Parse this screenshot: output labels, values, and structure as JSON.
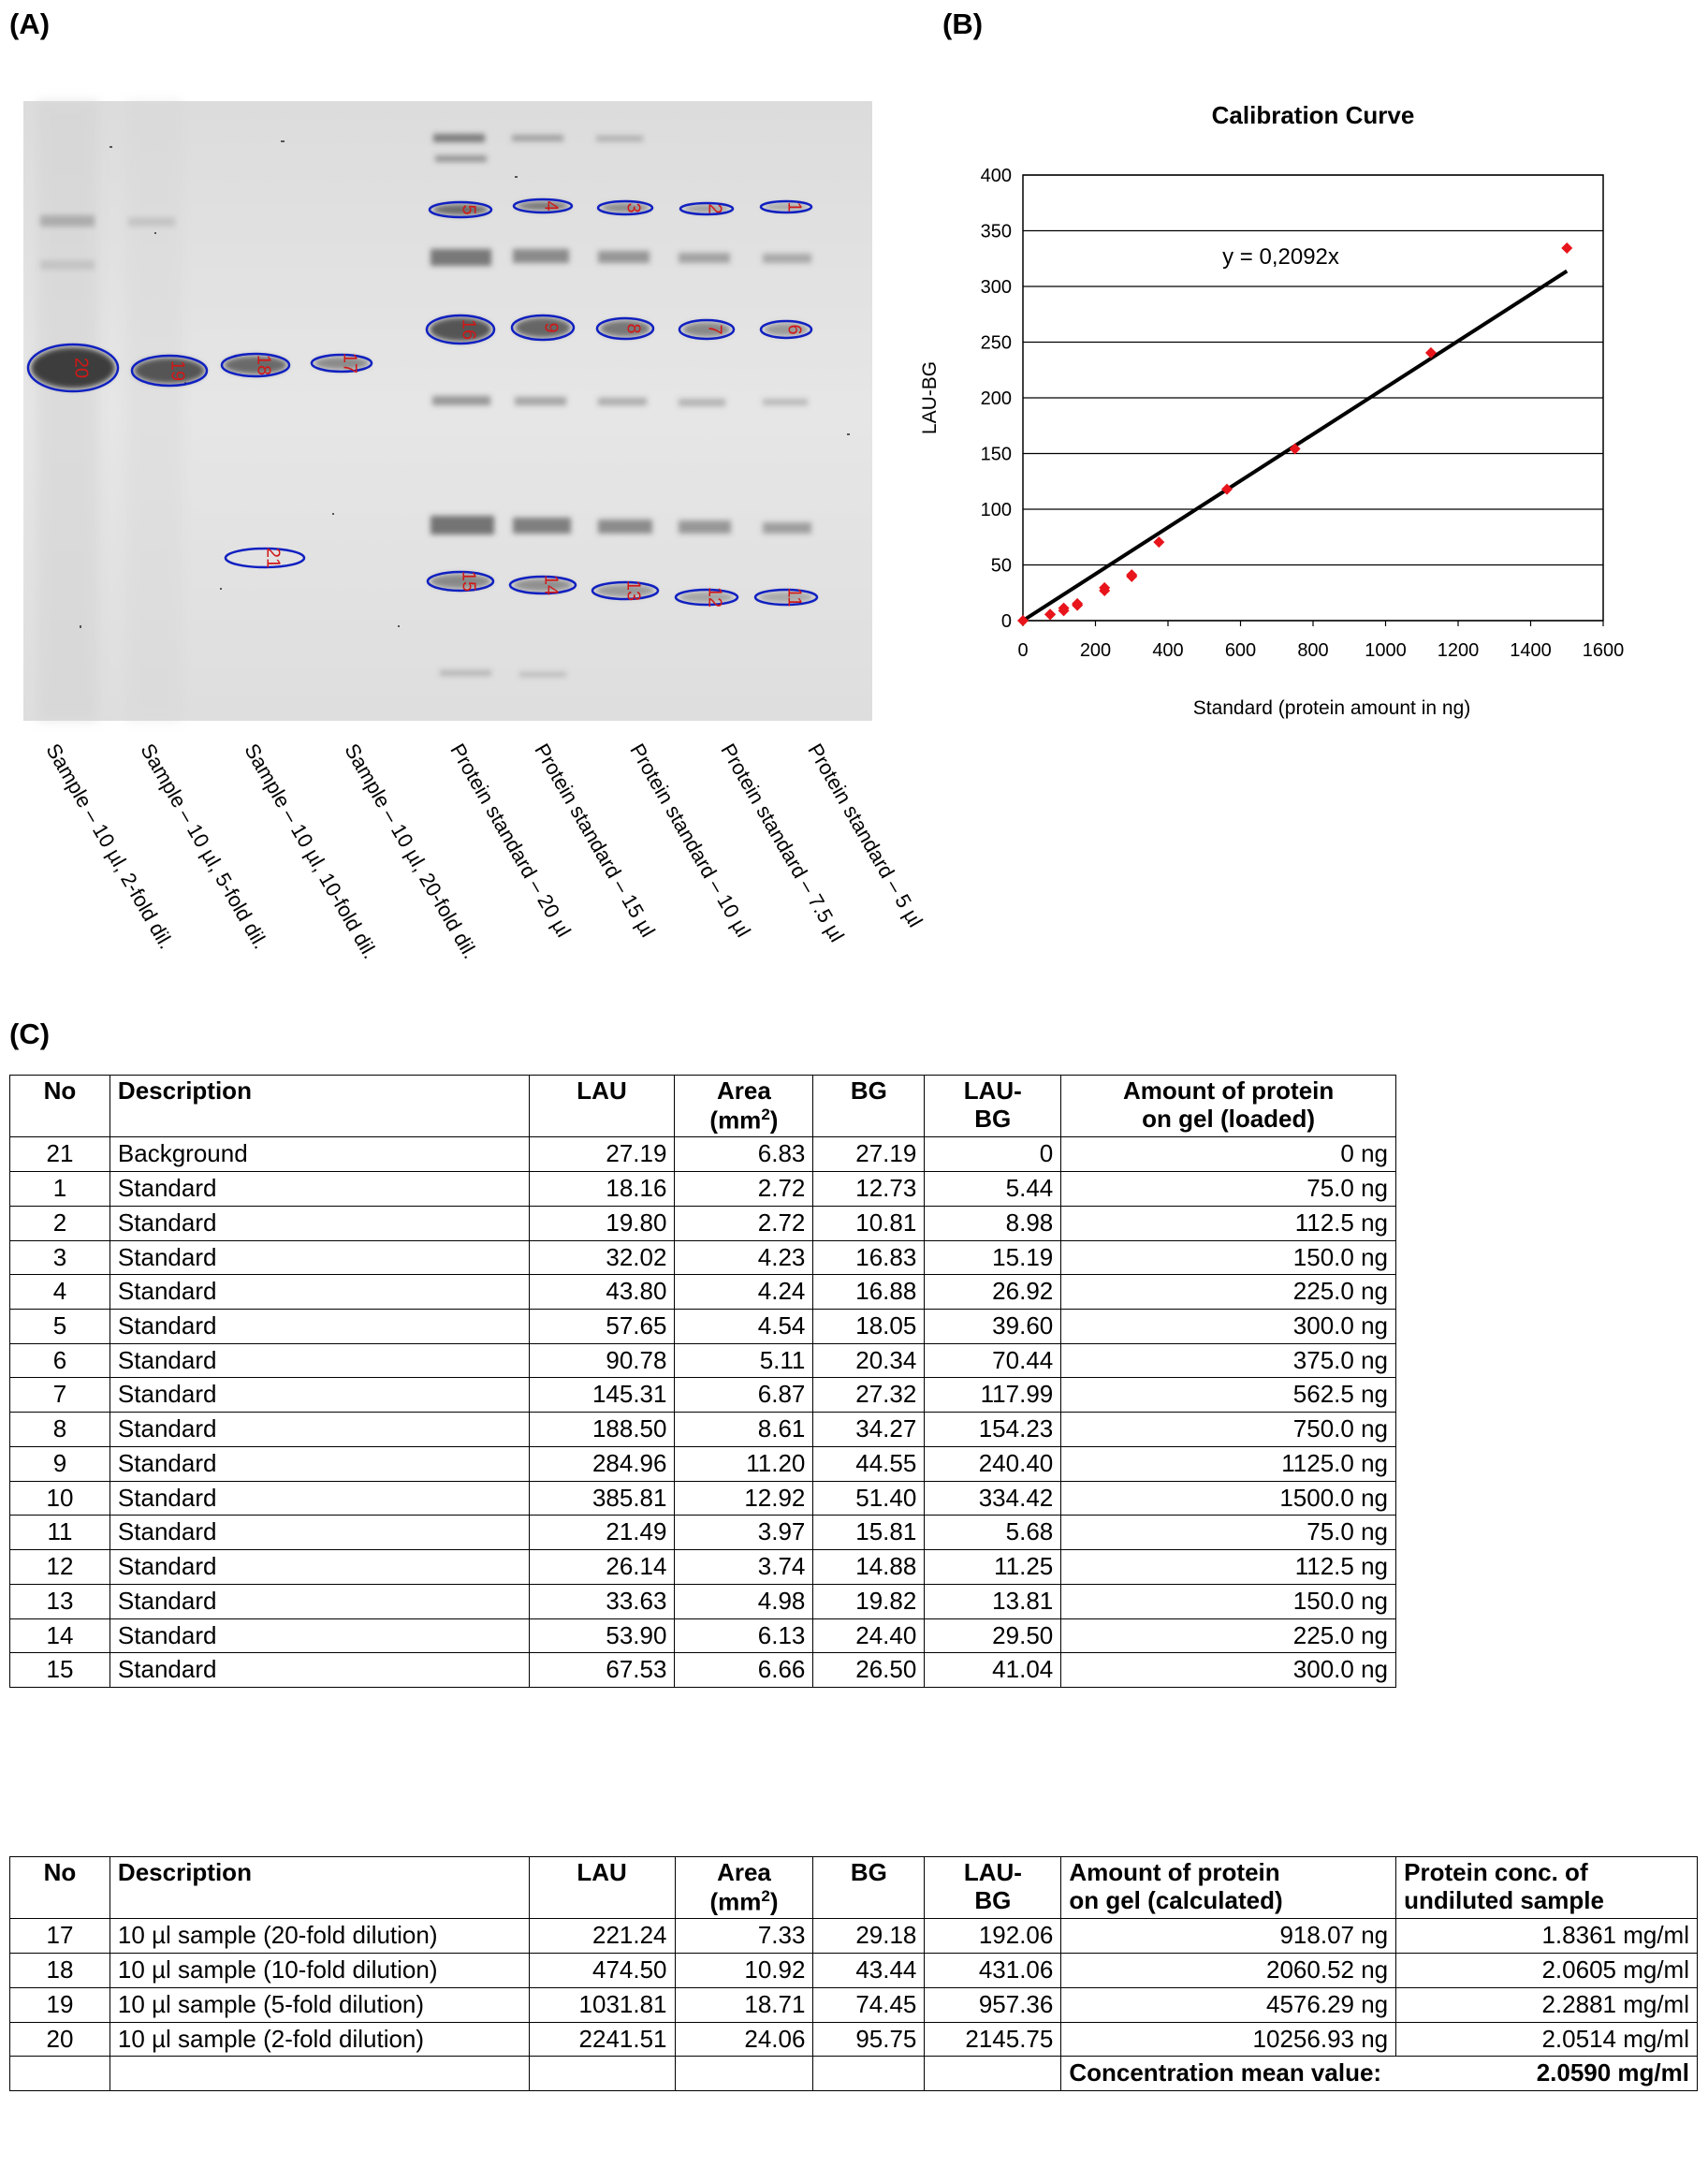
{
  "panels": {
    "a": "(A)",
    "b": "(B)",
    "c": "(C)"
  },
  "gel": {
    "band_numbers": [
      "20",
      "19",
      "18",
      "17",
      "16",
      "9",
      "8",
      "7",
      "6",
      "5",
      "4",
      "3",
      "2",
      "1",
      "15",
      "14",
      "13",
      "12",
      "11",
      "21"
    ],
    "lane_labels": [
      "Sample – 10 µl, 2-fold dil.",
      "Sample – 10 µl, 5-fold dil.",
      "Sample – 10 µl, 10-fold dil.",
      "Sample – 10 µl, 20-fold dil.",
      "Protein standard – 20 µl",
      "Protein standard – 15 µl",
      "Protein standard – 10 µl",
      "Protein standard – 7.5 µl",
      "Protein standard – 5 µl"
    ]
  },
  "chart_data": {
    "type": "scatter",
    "title": "Calibration Curve",
    "xlabel": "Standard (protein amount in ng)",
    "ylabel": "LAU-BG",
    "equation": "y = 0,2092x",
    "slope": 0.2092,
    "xlim": [
      0,
      1600
    ],
    "ylim": [
      0,
      400
    ],
    "x_ticks": [
      "0",
      "200",
      "400",
      "600",
      "800",
      "1000",
      "1200",
      "1400",
      "1600"
    ],
    "y_ticks": [
      "0",
      "50",
      "100",
      "150",
      "200",
      "250",
      "300",
      "350",
      "400"
    ],
    "grid": "horizontal",
    "point_color": "#e8141b",
    "line_color": "#000000",
    "series": [
      {
        "points": [
          [
            0,
            0
          ],
          [
            75,
            5.44
          ],
          [
            112.5,
            8.98
          ],
          [
            150,
            15.19
          ],
          [
            225,
            26.92
          ],
          [
            300,
            39.6
          ],
          [
            375,
            70.44
          ],
          [
            562.5,
            117.99
          ],
          [
            750,
            154.23
          ],
          [
            1125,
            240.4
          ],
          [
            1500,
            334.42
          ],
          [
            75,
            5.68
          ],
          [
            112.5,
            11.25
          ],
          [
            150,
            13.81
          ],
          [
            225,
            29.5
          ],
          [
            300,
            41.04
          ]
        ]
      }
    ]
  },
  "table1": {
    "headers": {
      "no": "No",
      "desc": "Description",
      "lau": "LAU",
      "area1": "Area",
      "area2": "(mm",
      "area_sup": "2",
      "area3": ")",
      "bg": "BG",
      "laubg1": "LAU-",
      "laubg2": "BG",
      "amount1": "Amount of protein",
      "amount2": "on gel (loaded)"
    },
    "rows": [
      [
        "21",
        "Background",
        "27.19",
        "6.83",
        "27.19",
        "0",
        "0 ng"
      ],
      [
        "1",
        "Standard",
        "18.16",
        "2.72",
        "12.73",
        "5.44",
        "75.0 ng"
      ],
      [
        "2",
        "Standard",
        "19.80",
        "2.72",
        "10.81",
        "8.98",
        "112.5 ng"
      ],
      [
        "3",
        "Standard",
        "32.02",
        "4.23",
        "16.83",
        "15.19",
        "150.0 ng"
      ],
      [
        "4",
        "Standard",
        "43.80",
        "4.24",
        "16.88",
        "26.92",
        "225.0 ng"
      ],
      [
        "5",
        "Standard",
        "57.65",
        "4.54",
        "18.05",
        "39.60",
        "300.0 ng"
      ],
      [
        "6",
        "Standard",
        "90.78",
        "5.11",
        "20.34",
        "70.44",
        "375.0 ng"
      ],
      [
        "7",
        "Standard",
        "145.31",
        "6.87",
        "27.32",
        "117.99",
        "562.5 ng"
      ],
      [
        "8",
        "Standard",
        "188.50",
        "8.61",
        "34.27",
        "154.23",
        "750.0 ng"
      ],
      [
        "9",
        "Standard",
        "284.96",
        "11.20",
        "44.55",
        "240.40",
        "1125.0 ng"
      ],
      [
        "10",
        "Standard",
        "385.81",
        "12.92",
        "51.40",
        "334.42",
        "1500.0 ng"
      ],
      [
        "11",
        "Standard",
        "21.49",
        "3.97",
        "15.81",
        "5.68",
        "75.0 ng"
      ],
      [
        "12",
        "Standard",
        "26.14",
        "3.74",
        "14.88",
        "11.25",
        "112.5 ng"
      ],
      [
        "13",
        "Standard",
        "33.63",
        "4.98",
        "19.82",
        "13.81",
        "150.0 ng"
      ],
      [
        "14",
        "Standard",
        "53.90",
        "6.13",
        "24.40",
        "29.50",
        "225.0 ng"
      ],
      [
        "15",
        "Standard",
        "67.53",
        "6.66",
        "26.50",
        "41.04",
        "300.0 ng"
      ]
    ]
  },
  "table2": {
    "headers": {
      "no": "No",
      "desc": "Description",
      "lau": "LAU",
      "area1": "Area",
      "area2": "(mm",
      "area_sup": "2",
      "area3": ")",
      "bg": "BG",
      "laubg1": "LAU-",
      "laubg2": "BG",
      "amount1": "Amount of protein",
      "amount2": "on gel (calculated)",
      "conc1": "Protein conc. of",
      "conc2": "undiluted sample"
    },
    "rows": [
      [
        "17",
        "10 µl sample (20-fold dilution)",
        "221.24",
        "7.33",
        "29.18",
        "192.06",
        "918.07 ng",
        "1.8361 mg/ml"
      ],
      [
        "18",
        "10 µl sample (10-fold dilution)",
        "474.50",
        "10.92",
        "43.44",
        "431.06",
        "2060.52 ng",
        "2.0605 mg/ml"
      ],
      [
        "19",
        "10 µl sample (5-fold dilution)",
        "1031.81",
        "18.71",
        "74.45",
        "957.36",
        "4576.29 ng",
        "2.2881 mg/ml"
      ],
      [
        "20",
        "10 µl sample (2-fold dilution)",
        "2241.51",
        "24.06",
        "95.75",
        "2145.75",
        "10256.93 ng",
        "2.0514 mg/ml"
      ]
    ],
    "mean_label": "Concentration mean value:",
    "mean_value": "2.0590 mg/ml"
  }
}
